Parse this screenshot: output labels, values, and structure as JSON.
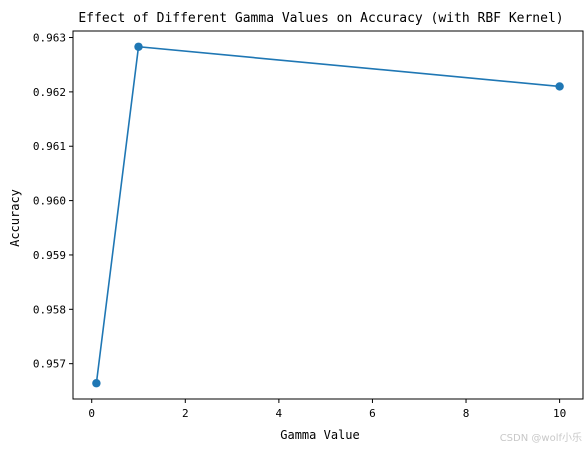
{
  "chart_data": {
    "type": "line",
    "title": "Effect of Different Gamma Values on Accuracy (with RBF Kernel)",
    "xlabel": "Gamma Value",
    "ylabel": "Accuracy",
    "x": [
      0.1,
      1,
      10
    ],
    "y": [
      0.95664,
      0.96283,
      0.9621
    ],
    "xlim": [
      -0.4,
      10.5
    ],
    "ylim": [
      0.95635,
      0.96312
    ],
    "xticks": [
      0,
      2,
      4,
      6,
      8,
      10
    ],
    "yticks": [
      0.957,
      0.958,
      0.959,
      0.96,
      0.961,
      0.962,
      0.963
    ],
    "xtick_labels": [
      "0",
      "2",
      "4",
      "6",
      "8",
      "10"
    ],
    "ytick_labels": [
      "0.957",
      "0.958",
      "0.959",
      "0.960",
      "0.961",
      "0.962",
      "0.963"
    ],
    "grid": false,
    "marker": "circle",
    "color": "#1f77b4"
  },
  "watermark": "CSDN @wolf小乐"
}
